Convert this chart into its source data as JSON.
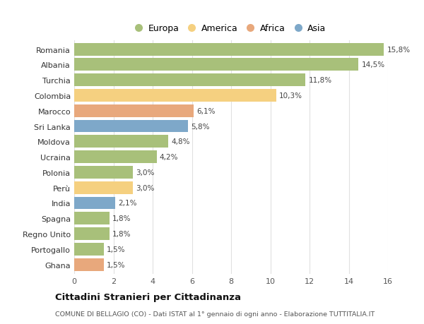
{
  "countries": [
    "Romania",
    "Albania",
    "Turchia",
    "Colombia",
    "Marocco",
    "Sri Lanka",
    "Moldova",
    "Ucraina",
    "Polonia",
    "Perù",
    "India",
    "Spagna",
    "Regno Unito",
    "Portogallo",
    "Ghana"
  ],
  "values": [
    15.8,
    14.5,
    11.8,
    10.3,
    6.1,
    5.8,
    4.8,
    4.2,
    3.0,
    3.0,
    2.1,
    1.8,
    1.8,
    1.5,
    1.5
  ],
  "labels": [
    "15,8%",
    "14,5%",
    "11,8%",
    "10,3%",
    "6,1%",
    "5,8%",
    "4,8%",
    "4,2%",
    "3,0%",
    "3,0%",
    "2,1%",
    "1,8%",
    "1,8%",
    "1,5%",
    "1,5%"
  ],
  "continents": [
    "Europa",
    "Europa",
    "Europa",
    "America",
    "Africa",
    "Asia",
    "Europa",
    "Europa",
    "Europa",
    "America",
    "Asia",
    "Europa",
    "Europa",
    "Europa",
    "Africa"
  ],
  "colors": {
    "Europa": "#a8c07a",
    "America": "#f5d080",
    "Africa": "#e8a87c",
    "Asia": "#7ea8c9"
  },
  "legend_order": [
    "Europa",
    "America",
    "Africa",
    "Asia"
  ],
  "title": "Cittadini Stranieri per Cittadinanza",
  "subtitle": "COMUNE DI BELLAGIO (CO) - Dati ISTAT al 1° gennaio di ogni anno - Elaborazione TUTTITALIA.IT",
  "xlim": [
    0,
    16
  ],
  "xticks": [
    0,
    2,
    4,
    6,
    8,
    10,
    12,
    14,
    16
  ],
  "bg_color": "#ffffff",
  "grid_color": "#e0e0e0",
  "bar_height": 0.82
}
